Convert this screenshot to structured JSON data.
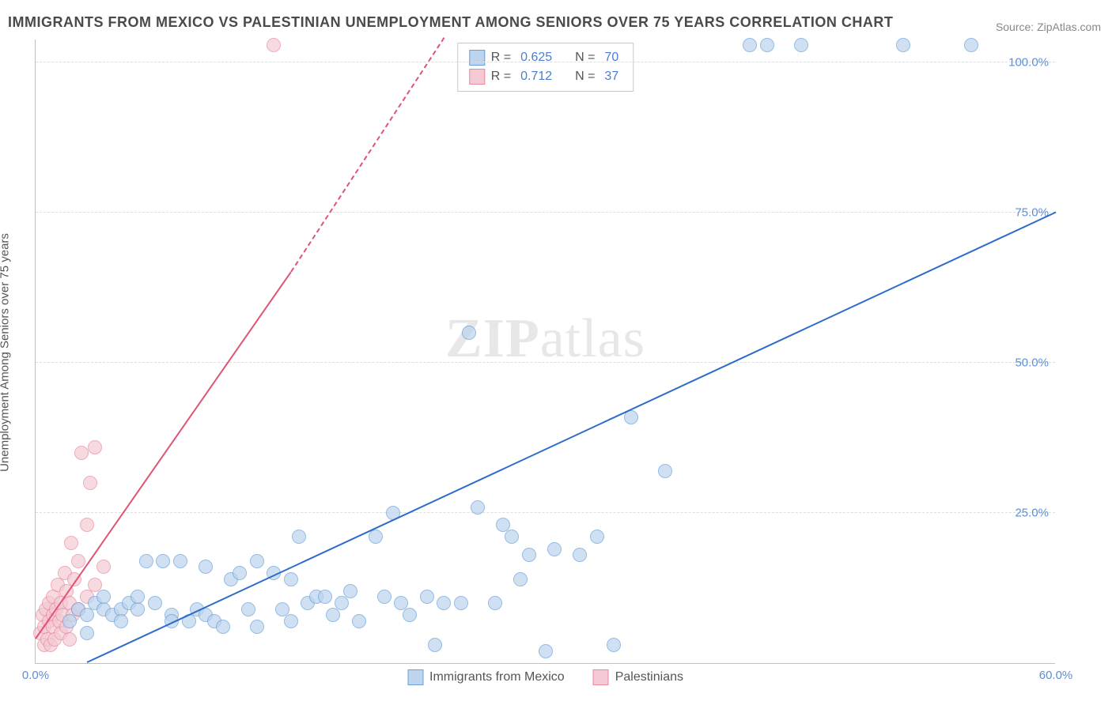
{
  "title": "IMMIGRANTS FROM MEXICO VS PALESTINIAN UNEMPLOYMENT AMONG SENIORS OVER 75 YEARS CORRELATION CHART",
  "source_prefix": "Source: ",
  "source_link": "ZipAtlas.com",
  "y_axis_label": "Unemployment Among Seniors over 75 years",
  "watermark_zip": "ZIP",
  "watermark_atlas": "atlas",
  "chart": {
    "type": "scatter",
    "xlim": [
      0,
      60
    ],
    "ylim": [
      0,
      104
    ],
    "xtick_labels": [
      {
        "pos": 0,
        "label": "0.0%"
      },
      {
        "pos": 60,
        "label": "60.0%"
      }
    ],
    "ytick_labels": [
      {
        "pos": 25,
        "label": "25.0%"
      },
      {
        "pos": 50,
        "label": "50.0%"
      },
      {
        "pos": 75,
        "label": "75.0%"
      },
      {
        "pos": 100,
        "label": "100.0%"
      }
    ],
    "gridlines_y": [
      25,
      50,
      75,
      100
    ],
    "marker_radius": 9,
    "marker_border": 1,
    "background_color": "#ffffff",
    "grid_color": "#dddddd",
    "axis_color": "#c0c0c0"
  },
  "series": {
    "mexico": {
      "label": "Immigrants from Mexico",
      "fill_color": "#bcd4ee",
      "border_color": "#6b9fd8",
      "line_color": "#2e6cc9",
      "fill_opacity": 0.7,
      "R": "0.625",
      "N": "70",
      "trend": {
        "x1": 3,
        "y1": 0,
        "x2": 60,
        "y2": 75
      },
      "points": [
        [
          2,
          7
        ],
        [
          2.5,
          9
        ],
        [
          3,
          8
        ],
        [
          3,
          5
        ],
        [
          3.5,
          10
        ],
        [
          4,
          9
        ],
        [
          4,
          11
        ],
        [
          4.5,
          8
        ],
        [
          5,
          9
        ],
        [
          5,
          7
        ],
        [
          5.5,
          10
        ],
        [
          6,
          9
        ],
        [
          6,
          11
        ],
        [
          6.5,
          17
        ],
        [
          7,
          10
        ],
        [
          7.5,
          17
        ],
        [
          8,
          8
        ],
        [
          8,
          7
        ],
        [
          8.5,
          17
        ],
        [
          9,
          7
        ],
        [
          9.5,
          9
        ],
        [
          10,
          16
        ],
        [
          10,
          8
        ],
        [
          10.5,
          7
        ],
        [
          11,
          6
        ],
        [
          11.5,
          14
        ],
        [
          12,
          15
        ],
        [
          12.5,
          9
        ],
        [
          13,
          6
        ],
        [
          13,
          17
        ],
        [
          14,
          15
        ],
        [
          14.5,
          9
        ],
        [
          15,
          7
        ],
        [
          15,
          14
        ],
        [
          15.5,
          21
        ],
        [
          16,
          10
        ],
        [
          16.5,
          11
        ],
        [
          17,
          11
        ],
        [
          17.5,
          8
        ],
        [
          18,
          10
        ],
        [
          18.5,
          12
        ],
        [
          19,
          7
        ],
        [
          20,
          21
        ],
        [
          20.5,
          11
        ],
        [
          21,
          25
        ],
        [
          21.5,
          10
        ],
        [
          22,
          8
        ],
        [
          23,
          11
        ],
        [
          23.5,
          3
        ],
        [
          24,
          10
        ],
        [
          25,
          10
        ],
        [
          25.5,
          55
        ],
        [
          26,
          26
        ],
        [
          27,
          10
        ],
        [
          27.5,
          23
        ],
        [
          28,
          21
        ],
        [
          28.5,
          14
        ],
        [
          29,
          18
        ],
        [
          30,
          2
        ],
        [
          30.5,
          19
        ],
        [
          32,
          18
        ],
        [
          33,
          21
        ],
        [
          34,
          3
        ],
        [
          35,
          41
        ],
        [
          37,
          32
        ],
        [
          42,
          103
        ],
        [
          43,
          103
        ],
        [
          45,
          103
        ],
        [
          51,
          103
        ],
        [
          55,
          103
        ]
      ]
    },
    "palestinians": {
      "label": "Palestinians",
      "fill_color": "#f5c9d3",
      "border_color": "#e78aa1",
      "line_color": "#e15372",
      "fill_opacity": 0.7,
      "R": "0.712",
      "N": "37",
      "trend_solid": {
        "x1": 0,
        "y1": 4,
        "x2": 15,
        "y2": 65
      },
      "trend_dash": {
        "x1": 15,
        "y1": 65,
        "x2": 24,
        "y2": 104
      },
      "points": [
        [
          0.3,
          5
        ],
        [
          0.4,
          8
        ],
        [
          0.5,
          3
        ],
        [
          0.5,
          6
        ],
        [
          0.6,
          9
        ],
        [
          0.7,
          4
        ],
        [
          0.8,
          10
        ],
        [
          0.8,
          7
        ],
        [
          0.9,
          3
        ],
        [
          1,
          8
        ],
        [
          1,
          6
        ],
        [
          1,
          11
        ],
        [
          1.1,
          4
        ],
        [
          1.2,
          9
        ],
        [
          1.3,
          13
        ],
        [
          1.4,
          7
        ],
        [
          1.5,
          5
        ],
        [
          1.5,
          10
        ],
        [
          1.6,
          8
        ],
        [
          1.7,
          15
        ],
        [
          1.8,
          6
        ],
        [
          1.8,
          12
        ],
        [
          2,
          10
        ],
        [
          2,
          4
        ],
        [
          2.1,
          20
        ],
        [
          2.2,
          8
        ],
        [
          2.3,
          14
        ],
        [
          2.5,
          9
        ],
        [
          2.5,
          17
        ],
        [
          2.7,
          35
        ],
        [
          3,
          11
        ],
        [
          3,
          23
        ],
        [
          3.2,
          30
        ],
        [
          3.5,
          13
        ],
        [
          3.5,
          36
        ],
        [
          4,
          16
        ],
        [
          14,
          103
        ]
      ]
    }
  },
  "stats_legend": {
    "R_label": "R =",
    "N_label": "N ="
  }
}
